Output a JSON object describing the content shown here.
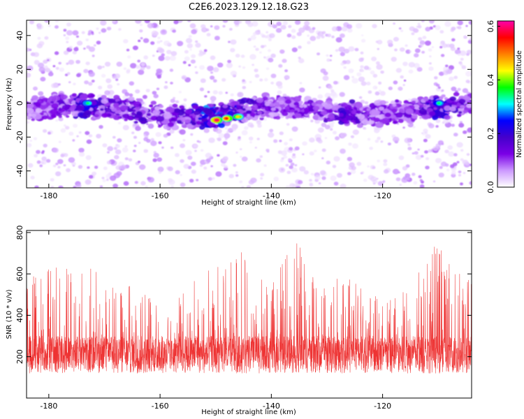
{
  "figure": {
    "title": "C2E6.2023.129.12.18.G23"
  },
  "chart_data": [
    {
      "type": "heatmap",
      "title": "C2E6.2023.129.12.18.G23",
      "xlabel": "Height of straight line (km)",
      "ylabel": "Frequency (Hz)",
      "xlim": [
        -184,
        -104
      ],
      "ylim": [
        -50,
        49
      ],
      "x_ticks": [
        -180,
        -160,
        -140,
        -120
      ],
      "y_ticks": [
        -40,
        -20,
        0,
        20,
        40
      ],
      "colorbar": {
        "label": "Normalized spectral amplitude",
        "range": [
          0.0,
          0.62
        ],
        "ticks": [
          0.0,
          0.2,
          0.4,
          0.6
        ],
        "colors": [
          "#ffffff",
          "#cc99ff",
          "#7a00e6",
          "#4400cc",
          "#0000ff",
          "#00ffff",
          "#00ff00",
          "#ffff00",
          "#ff8000",
          "#ff0000",
          "#ff00aa"
        ]
      },
      "band": {
        "center_hz": -4,
        "halfwidth_hz": 7,
        "strongest": [
          {
            "x": -150,
            "y": -10,
            "value": 0.6
          },
          {
            "x": -148,
            "y": -9,
            "value": 0.55
          },
          {
            "x": -146,
            "y": -8,
            "value": 0.45
          },
          {
            "x": -173,
            "y": 0,
            "value": 0.35
          },
          {
            "x": -110,
            "y": 0,
            "value": 0.35
          }
        ]
      }
    },
    {
      "type": "line",
      "xlabel": "Height of straight line (km)",
      "ylabel": "SNR (10 * v/v)",
      "xlim": [
        -184,
        -104
      ],
      "ylim": [
        0,
        810
      ],
      "x_ticks": [
        -180,
        -160,
        -140,
        -120
      ],
      "y_ticks": [
        200,
        400,
        600,
        800
      ],
      "series": [
        {
          "color": "#ee3333",
          "baseline": 210,
          "envelope_x": [
            -184,
            -180,
            -176,
            -172,
            -168,
            -164,
            -160,
            -156,
            -152,
            -148,
            -145,
            -143,
            -140,
            -136,
            -132,
            -128,
            -124,
            -120,
            -116,
            -112,
            -110,
            -108,
            -104
          ],
          "envelope_y": [
            560,
            660,
            620,
            660,
            520,
            560,
            430,
            520,
            640,
            640,
            740,
            610,
            520,
            800,
            560,
            600,
            580,
            460,
            520,
            700,
            780,
            660,
            560
          ]
        }
      ]
    }
  ]
}
